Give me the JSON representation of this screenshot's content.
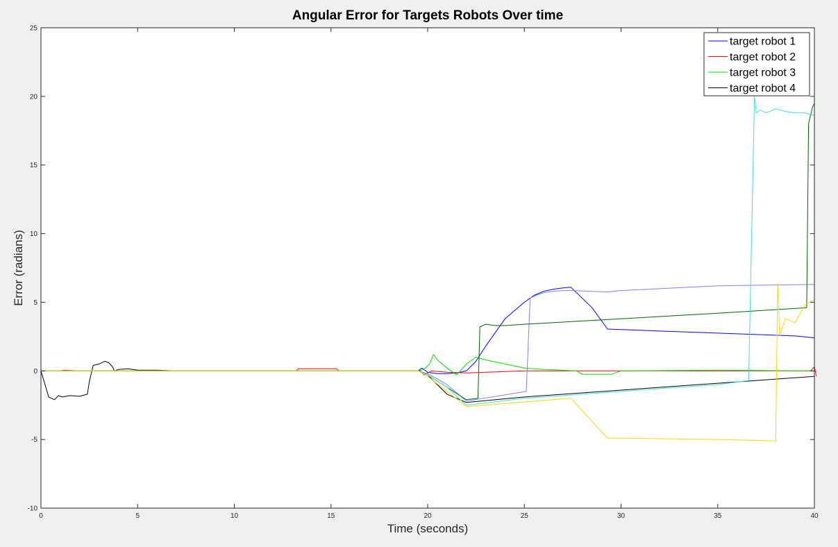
{
  "chart_data": {
    "type": "line",
    "title": "Angular Error for Targets Robots Over time",
    "xlabel": "Time (seconds)",
    "ylabel": "Error (radians)",
    "xlim": [
      0,
      40
    ],
    "ylim": [
      -10,
      25
    ],
    "xticks": [
      "0",
      "5",
      "10",
      "15",
      "20",
      "25",
      "30",
      "35",
      "40"
    ],
    "yticks": [
      "-10",
      "-5",
      "0",
      "5",
      "10",
      "15",
      "20",
      "25"
    ],
    "grid": false,
    "legend_position": "top-right",
    "legend": [
      "target robot 1",
      "target robot 2",
      "target robot 3",
      "target robot 4"
    ],
    "series": [
      {
        "name": "target robot 1",
        "color": "#0000ff",
        "x": [
          0,
          19.5,
          19.7,
          20.0,
          20.5,
          21.0,
          21.5,
          22.0,
          22.5,
          23.0,
          23.5,
          24.0,
          24.5,
          25.0,
          25.5,
          26.0,
          26.5,
          27.0,
          27.4,
          28.5,
          29.3,
          32,
          36,
          39,
          40
        ],
        "y": [
          0,
          0,
          0.2,
          -0.1,
          -0.2,
          -0.2,
          -0.15,
          0,
          0.7,
          1.8,
          2.8,
          3.8,
          4.4,
          5.0,
          5.5,
          5.8,
          5.95,
          6.05,
          6.1,
          4.6,
          3.05,
          2.9,
          2.7,
          2.55,
          2.4
        ]
      },
      {
        "name": "target robot 2",
        "color": "#ff0000",
        "x": [
          0,
          1,
          1.2,
          2,
          13.2,
          13.3,
          15.3,
          15.4,
          19.6,
          19.8,
          20.2,
          21,
          22,
          23,
          25,
          30,
          35,
          39.8,
          40.0,
          40.1
        ],
        "y": [
          0,
          0,
          0.05,
          0,
          0,
          0.15,
          0.15,
          0,
          0,
          -0.3,
          0,
          -0.1,
          -0.15,
          -0.1,
          0,
          0,
          0,
          0,
          0.3,
          -0.4
        ]
      },
      {
        "name": "target robot 3",
        "color": "#00e000",
        "x": [
          0,
          19.5,
          19.8,
          20.1,
          20.3,
          20.5,
          21,
          21.5,
          22,
          22.5,
          23,
          24,
          25,
          26,
          27,
          27.7,
          28,
          29.5,
          30,
          35,
          40
        ],
        "y": [
          0,
          0,
          0.1,
          0.5,
          1.2,
          0.8,
          0.2,
          -0.3,
          0.5,
          1.0,
          0.8,
          0.5,
          0.2,
          0.1,
          0.05,
          0,
          -0.25,
          -0.25,
          0,
          0.05,
          0
        ]
      },
      {
        "name": "target robot 4",
        "color": "#000000",
        "x": [
          0,
          0.4,
          0.7,
          0.9,
          1.1,
          1.5,
          2.0,
          2.4,
          2.5,
          2.7,
          3.0,
          3.3,
          3.5,
          3.7,
          3.8,
          4.0,
          4.5,
          5.0,
          6.0,
          7.0,
          19.5,
          20.0,
          20.5,
          21,
          22,
          25,
          30,
          35,
          40
        ],
        "y": [
          0,
          -1.9,
          -2.1,
          -1.8,
          -1.9,
          -1.8,
          -1.85,
          -1.7,
          -0.8,
          0.4,
          0.5,
          0.7,
          0.6,
          0.3,
          0,
          0.1,
          0.15,
          0.05,
          0.05,
          0,
          0,
          -0.3,
          -1.0,
          -1.7,
          -2.3,
          -1.9,
          -1.4,
          -0.9,
          -0.4
        ]
      },
      {
        "name": "",
        "color": "#7f7fff",
        "x": [
          0,
          19.5,
          20.0,
          21.0,
          22.0,
          25.1,
          25.3,
          25.6,
          26.0,
          26.5,
          27.0,
          27.5,
          29.3,
          30.0,
          35.0,
          40.0
        ],
        "y": [
          0,
          0,
          -0.2,
          -1.0,
          -2.2,
          -1.5,
          5.3,
          5.5,
          5.7,
          5.8,
          5.85,
          5.85,
          5.75,
          5.85,
          6.2,
          6.3
        ]
      },
      {
        "name": "",
        "color": "#006400",
        "x": [
          0,
          19.5,
          20.0,
          21.0,
          22.0,
          22.6,
          22.7,
          23.0,
          23.5,
          24.0,
          25.0,
          30.0,
          35.0,
          39.6,
          39.7,
          39.9,
          40.0
        ],
        "y": [
          0,
          0,
          -0.3,
          -1.2,
          -2.1,
          -2.0,
          3.2,
          3.4,
          3.3,
          3.3,
          3.4,
          3.8,
          4.2,
          4.6,
          18.0,
          19.2,
          19.5
        ]
      },
      {
        "name": "",
        "color": "#40e0d0",
        "x": [
          0,
          19.5,
          20.0,
          21.0,
          22.0,
          25.0,
          30.0,
          35.0,
          36.6,
          36.9,
          37.0,
          37.2,
          37.5,
          38.0,
          38.5,
          39.0,
          39.5,
          40.0
        ],
        "y": [
          0,
          0,
          -0.3,
          -1.2,
          -2.5,
          -2.0,
          -1.5,
          -1.0,
          -0.7,
          20.0,
          18.8,
          19.0,
          18.8,
          19.1,
          18.9,
          18.8,
          18.8,
          18.6
        ]
      },
      {
        "name": "",
        "color": "#ffd700",
        "x": [
          0,
          19.5,
          20.0,
          21.0,
          22.0,
          27.4,
          29.3,
          30.0,
          35.0,
          38.0,
          38.1,
          38.2,
          38.5,
          39.0,
          39.5,
          40.0
        ],
        "y": [
          0,
          0,
          -0.4,
          -1.5,
          -2.6,
          -2.0,
          -4.9,
          -4.9,
          -5.0,
          -5.1,
          6.4,
          2.6,
          3.8,
          3.5,
          4.8,
          5.2
        ]
      }
    ]
  }
}
